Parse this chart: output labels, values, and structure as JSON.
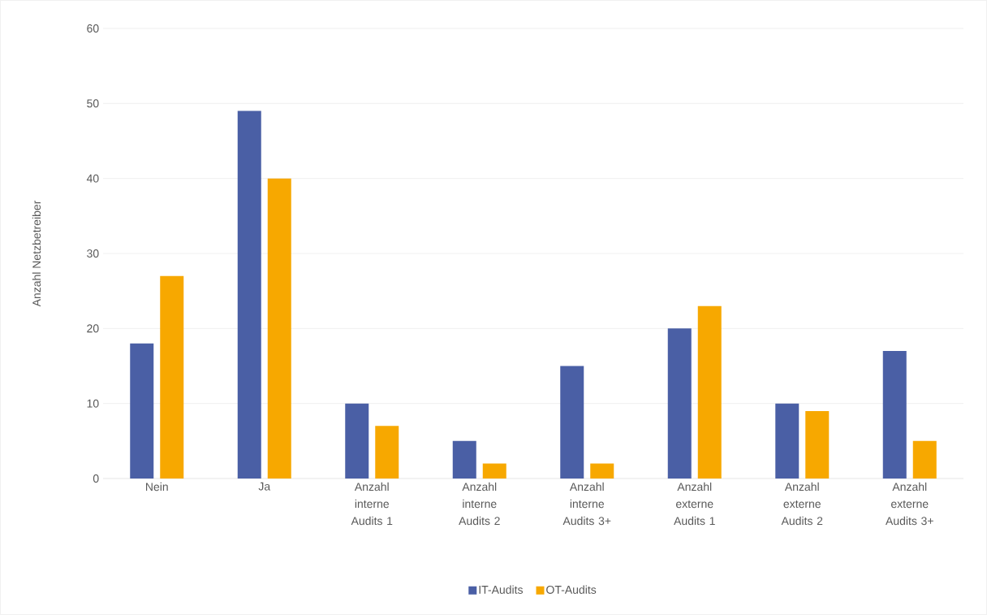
{
  "chart_data": {
    "type": "bar",
    "ylabel": "Anzahl Netzbetreiber",
    "categories": [
      "Nein",
      "Ja",
      "Anzahl interne Audits 1",
      "Anzahl interne Audits 2",
      "Anzahl interne Audits 3+",
      "Anzahl externe Audits 1",
      "Anzahl externe Audits 2",
      "Anzahl externe Audits 3+"
    ],
    "series": [
      {
        "name": "IT-Audits",
        "color": "#4a5fa5",
        "values": [
          18,
          49,
          10,
          5,
          15,
          20,
          10,
          17
        ]
      },
      {
        "name": "OT-Audits",
        "color": "#f7a800",
        "values": [
          27,
          40,
          7,
          2,
          2,
          23,
          9,
          5
        ]
      }
    ],
    "ylim": [
      0,
      60
    ],
    "yticks": [
      0,
      10,
      20,
      30,
      40,
      50,
      60
    ],
    "grid": "y",
    "legend": "bottom"
  }
}
